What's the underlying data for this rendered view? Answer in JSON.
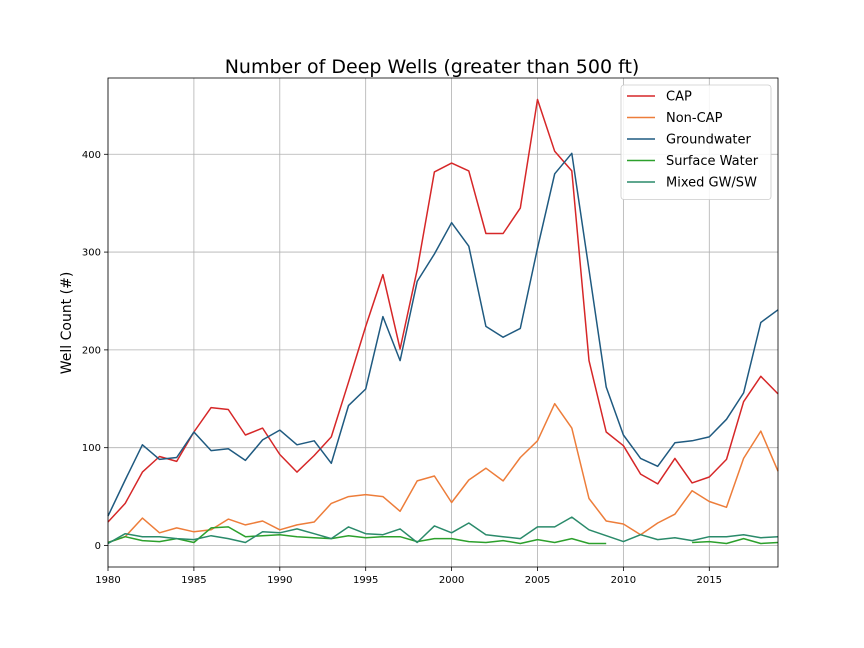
{
  "chart_data": {
    "type": "line",
    "title": "Number of Deep Wells (greater than 500 ft)",
    "xlabel": "",
    "ylabel": "Well Count (#)",
    "xlim": [
      1980,
      2019
    ],
    "ylim": [
      -22,
      478
    ],
    "xticks": [
      1980,
      1985,
      1990,
      1995,
      2000,
      2005,
      2010,
      2015
    ],
    "xtick_labels": [
      "1980",
      "1985",
      "1990",
      "1995",
      "2000",
      "2005",
      "2010",
      "2015"
    ],
    "yticks": [
      0,
      100,
      200,
      300,
      400
    ],
    "ytick_labels": [
      "0",
      "100",
      "200",
      "300",
      "400"
    ],
    "grid": true,
    "legend_position": "top-right",
    "series": [
      {
        "name": "CAP",
        "color": "#d62728",
        "x": [
          1980,
          1981,
          1982,
          1983,
          1984,
          1985,
          1986,
          1987,
          1988,
          1989,
          1990,
          1991,
          1992,
          1993,
          1994,
          1995,
          1996,
          1997,
          1998,
          1999,
          2000,
          2001,
          2002,
          2003,
          2004,
          2005,
          2006,
          2007,
          2008,
          2009,
          2010,
          2011,
          2012,
          2013,
          2014,
          2015,
          2016,
          2017,
          2018,
          2019
        ],
        "values": [
          24,
          43,
          75,
          91,
          86,
          116,
          141,
          139,
          113,
          120,
          93,
          75,
          92,
          111,
          167,
          224,
          277,
          201,
          282,
          382,
          391,
          383,
          319,
          319,
          345,
          456,
          403,
          383,
          189,
          116,
          102,
          73,
          63,
          89,
          64,
          70,
          88,
          147,
          173,
          155
        ]
      },
      {
        "name": "Non-CAP",
        "color": "#ed7d3a",
        "x": [
          1980,
          1981,
          1982,
          1983,
          1984,
          1985,
          1986,
          1987,
          1988,
          1989,
          1990,
          1991,
          1992,
          1993,
          1994,
          1995,
          1996,
          1997,
          1998,
          1999,
          2000,
          2001,
          2002,
          2003,
          2004,
          2005,
          2006,
          2007,
          2008,
          2009,
          2010,
          2011,
          2012,
          2013,
          2014,
          2015,
          2016,
          2017,
          2018,
          2019
        ],
        "values": [
          3,
          9,
          28,
          13,
          18,
          14,
          16,
          27,
          21,
          25,
          16,
          21,
          24,
          43,
          50,
          52,
          50,
          35,
          66,
          71,
          44,
          67,
          79,
          66,
          90,
          107,
          145,
          120,
          48,
          25,
          22,
          11,
          23,
          32,
          56,
          45,
          39,
          89,
          117,
          76
        ]
      },
      {
        "name": "Groundwater",
        "color": "#1f5a80",
        "x": [
          1980,
          1981,
          1982,
          1983,
          1984,
          1985,
          1986,
          1987,
          1988,
          1989,
          1990,
          1991,
          1992,
          1993,
          1994,
          1995,
          1996,
          1997,
          1998,
          1999,
          2000,
          2001,
          2002,
          2003,
          2004,
          2005,
          2006,
          2007,
          2008,
          2009,
          2010,
          2011,
          2012,
          2013,
          2014,
          2015,
          2016,
          2017,
          2018,
          2019
        ],
        "values": [
          30,
          67,
          103,
          88,
          90,
          116,
          97,
          99,
          87,
          108,
          118,
          103,
          107,
          84,
          143,
          160,
          234,
          189,
          270,
          298,
          330,
          306,
          224,
          213,
          222,
          304,
          380,
          401,
          282,
          162,
          113,
          89,
          81,
          105,
          107,
          111,
          129,
          156,
          228,
          241
        ]
      },
      {
        "name": "Surface Water",
        "color": "#2ca02c",
        "x": [
          1980,
          1981,
          1982,
          1983,
          1984,
          1985,
          1986,
          1987,
          1988,
          1989,
          1990,
          1991,
          1992,
          1993,
          1994,
          1995,
          1996,
          1997,
          1998,
          1999,
          2000,
          2001,
          2002,
          2003,
          2004,
          2005,
          2006,
          2007,
          2008,
          2009,
          2014,
          2015,
          2016,
          2017,
          2018,
          2019
        ],
        "values": [
          3,
          9,
          5,
          4,
          7,
          3,
          18,
          19,
          9,
          10,
          11,
          9,
          8,
          7,
          10,
          8,
          9,
          9,
          4,
          7,
          7,
          4,
          3,
          5,
          2,
          6,
          3,
          7,
          2,
          2,
          3,
          4,
          2,
          7,
          2,
          3
        ]
      },
      {
        "name": "Mixed GW/SW",
        "color": "#2a8a6a",
        "x": [
          1980,
          1981,
          1982,
          1983,
          1984,
          1985,
          1986,
          1987,
          1988,
          1989,
          1990,
          1991,
          1992,
          1993,
          1994,
          1995,
          1996,
          1997,
          1998,
          1999,
          2000,
          2001,
          2002,
          2003,
          2004,
          2005,
          2006,
          2007,
          2008,
          2009,
          2010,
          2011,
          2012,
          2013,
          2014,
          2015,
          2016,
          2017,
          2018,
          2019
        ],
        "values": [
          2,
          12,
          9,
          9,
          7,
          6,
          10,
          7,
          3,
          14,
          13,
          17,
          12,
          7,
          19,
          12,
          11,
          17,
          3,
          20,
          13,
          23,
          11,
          9,
          7,
          19,
          19,
          29,
          16,
          10,
          4,
          11,
          6,
          8,
          5,
          9,
          9,
          11,
          8,
          9
        ]
      }
    ]
  }
}
